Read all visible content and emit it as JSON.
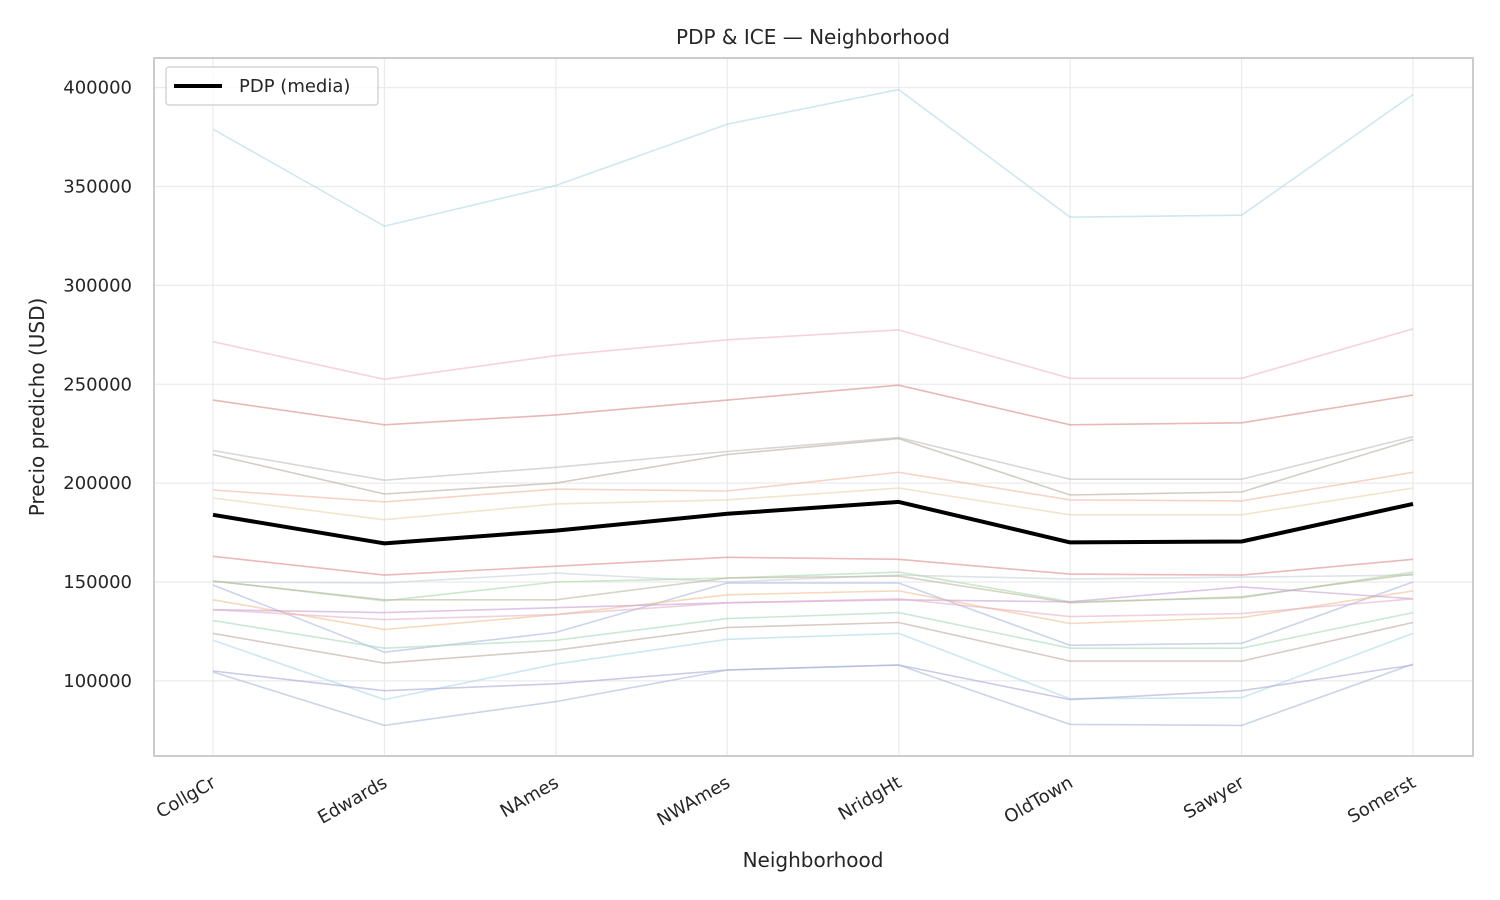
{
  "chart_data": {
    "type": "line",
    "title": "PDP & ICE — Neighborhood",
    "xlabel": "Neighborhood",
    "ylabel": "Precio predicho (USD)",
    "categories": [
      "CollgCr",
      "Edwards",
      "NAmes",
      "NWAmes",
      "NridgHt",
      "OldTown",
      "Sawyer",
      "Somerst"
    ],
    "ylim": [
      62000,
      415000
    ],
    "yticks": [
      100000,
      150000,
      200000,
      250000,
      300000,
      350000,
      400000
    ],
    "grid": true,
    "legend": {
      "placement": "top-left",
      "entries": [
        "PDP (media)"
      ]
    },
    "series": [
      {
        "name": "PDP (media)",
        "role": "pdp",
        "color": "#000000",
        "values": [
          184000,
          169500,
          176000,
          184500,
          190500,
          170000,
          170500,
          189500
        ]
      }
    ],
    "ice": [
      {
        "color": "#add8e6",
        "values": [
          379000,
          330000,
          350500,
          381500,
          399000,
          334500,
          335500,
          396500
        ]
      },
      {
        "color": "#f0b6c8",
        "values": [
          271500,
          252500,
          264500,
          272500,
          277500,
          253000,
          253000,
          278000
        ]
      },
      {
        "color": "#d98a80",
        "values": [
          242000,
          229500,
          234500,
          242000,
          249500,
          229500,
          230500,
          244500
        ]
      },
      {
        "color": "#bcbcbc",
        "values": [
          216500,
          201500,
          208000,
          216000,
          223000,
          202000,
          202000,
          223500
        ]
      },
      {
        "color": "#b8aca0",
        "values": [
          214500,
          194500,
          200000,
          214500,
          222500,
          194000,
          195500,
          222000
        ]
      },
      {
        "color": "#f0b8a0",
        "values": [
          196500,
          190500,
          197000,
          196000,
          205500,
          191500,
          191000,
          205500
        ]
      },
      {
        "color": "#e8d4a8",
        "values": [
          192500,
          181500,
          189500,
          191500,
          197500,
          184000,
          184000,
          197500
        ]
      },
      {
        "color": "#e08888",
        "values": [
          163000,
          153500,
          158000,
          162500,
          161500,
          154000,
          153500,
          161500
        ]
      },
      {
        "color": "#c8d0dc",
        "values": [
          150000,
          149500,
          154500,
          150000,
          153500,
          151500,
          152500,
          153500
        ]
      },
      {
        "color": "#a6d8a6",
        "values": [
          150500,
          140500,
          150000,
          152000,
          155000,
          140000,
          142000,
          155000
        ]
      },
      {
        "color": "#bcb8a0",
        "values": [
          150500,
          141000,
          141000,
          152000,
          153000,
          139500,
          142500,
          154000
        ]
      },
      {
        "color": "#a8b8e0",
        "values": [
          148500,
          114500,
          124500,
          149500,
          149500,
          118000,
          119000,
          150000
        ]
      },
      {
        "color": "#f0c090",
        "values": [
          141000,
          126000,
          133500,
          143500,
          145500,
          129000,
          132000,
          145500
        ]
      },
      {
        "color": "#c8a0d8",
        "values": [
          136000,
          134500,
          137000,
          139500,
          141000,
          140000,
          147500,
          141500
        ]
      },
      {
        "color": "#e8b0c8",
        "values": [
          136000,
          131000,
          133500,
          139500,
          141500,
          132500,
          134000,
          141500
        ]
      },
      {
        "color": "#a8d8b8",
        "values": [
          130500,
          116500,
          120500,
          131500,
          134500,
          116500,
          116500,
          134500
        ]
      },
      {
        "color": "#c0a8a0",
        "values": [
          124000,
          109000,
          115500,
          127000,
          129500,
          110000,
          110000,
          129500
        ]
      },
      {
        "color": "#a8d8e8",
        "values": [
          120500,
          90500,
          108500,
          121000,
          124000,
          91000,
          91500,
          124000
        ]
      },
      {
        "color": "#a8a8d8",
        "values": [
          105000,
          95000,
          98500,
          105500,
          108000,
          90500,
          95000,
          108000
        ]
      },
      {
        "color": "#a8b8d8",
        "values": [
          104500,
          77500,
          89500,
          105500,
          108000,
          78000,
          77500,
          108500
        ]
      }
    ]
  }
}
